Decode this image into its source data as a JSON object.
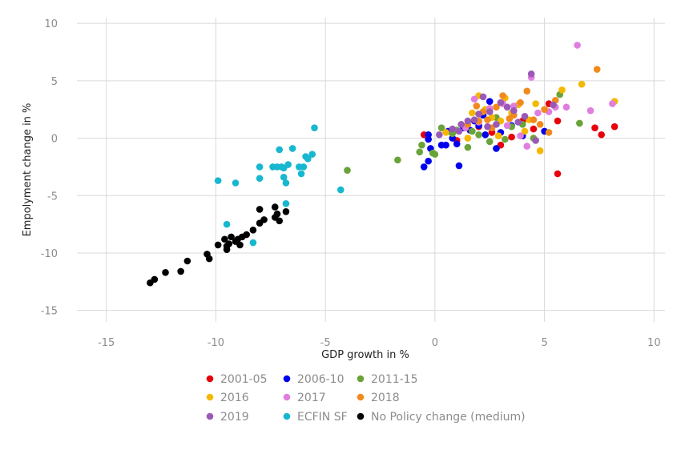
{
  "chart_data": {
    "type": "scatter",
    "title": "",
    "xlabel": "GDP growth in %",
    "ylabel": "Empolyment change in %",
    "xlim": [
      -17,
      10.5
    ],
    "ylim": [
      -16,
      10.5
    ],
    "xticks": [
      -15,
      -10,
      -5,
      0,
      5,
      10
    ],
    "yticks": [
      10,
      5,
      0,
      -5,
      -10,
      -15
    ],
    "xtick_labels": [
      "-15",
      "-10",
      "-5",
      "0",
      "5",
      "10"
    ],
    "ytick_labels": [
      "10",
      "5",
      "0",
      "-5",
      "-10",
      "-15"
    ],
    "grid": true,
    "legend_position": "bottom",
    "series": [
      {
        "name": "2001-05",
        "color": "#e8000b",
        "points": [
          [
            5.2,
            3.0
          ],
          [
            5.6,
            1.5
          ],
          [
            7.3,
            0.9
          ],
          [
            7.6,
            0.3
          ],
          [
            8.2,
            1.0
          ],
          [
            5.6,
            -3.1
          ],
          [
            4.5,
            0.8
          ],
          [
            3.0,
            -0.6
          ],
          [
            1.0,
            -0.2
          ],
          [
            -0.5,
            0.3
          ],
          [
            2.0,
            1.0
          ],
          [
            4.0,
            1.5
          ],
          [
            2.6,
            0.5
          ],
          [
            3.5,
            0.1
          ]
        ]
      },
      {
        "name": "2006-10",
        "color": "#0000ee",
        "points": [
          [
            -0.5,
            -2.5
          ],
          [
            -0.3,
            -2.0
          ],
          [
            -0.3,
            -0.1
          ],
          [
            -0.3,
            0.3
          ],
          [
            0.3,
            -0.6
          ],
          [
            0.5,
            -0.6
          ],
          [
            0.8,
            0.0
          ],
          [
            1.0,
            -0.5
          ],
          [
            1.1,
            -2.4
          ],
          [
            1.3,
            0.9
          ],
          [
            1.6,
            0.7
          ],
          [
            2.0,
            1.1
          ],
          [
            2.3,
            0.3
          ],
          [
            2.5,
            3.2
          ],
          [
            2.8,
            -0.9
          ],
          [
            3.0,
            0.5
          ],
          [
            3.5,
            1.1
          ],
          [
            -0.2,
            -0.9
          ],
          [
            0.6,
            0.6
          ],
          [
            1.8,
            1.5
          ],
          [
            2.2,
            2.0
          ],
          [
            4.0,
            0.2
          ],
          [
            5.0,
            0.6
          ]
        ]
      },
      {
        "name": "2011-15",
        "color": "#6aa339",
        "points": [
          [
            -4.0,
            -2.8
          ],
          [
            -1.7,
            -1.9
          ],
          [
            -0.7,
            -1.2
          ],
          [
            -0.6,
            -0.6
          ],
          [
            -0.1,
            -1.3
          ],
          [
            0.0,
            -1.4
          ],
          [
            0.3,
            0.9
          ],
          [
            0.8,
            0.4
          ],
          [
            1.5,
            -0.8
          ],
          [
            2.0,
            0.3
          ],
          [
            2.5,
            -0.3
          ],
          [
            3.5,
            1.0
          ],
          [
            4.5,
            0.0
          ],
          [
            5.7,
            3.8
          ],
          [
            6.6,
            1.3
          ],
          [
            1.0,
            0.7
          ],
          [
            2.8,
            1.8
          ],
          [
            3.2,
            -0.1
          ],
          [
            4.0,
            1.2
          ],
          [
            1.7,
            0.6
          ]
        ]
      },
      {
        "name": "2016",
        "color": "#f5b800",
        "points": [
          [
            0.5,
            0.5
          ],
          [
            1.5,
            0.0
          ],
          [
            2.0,
            3.7
          ],
          [
            2.3,
            2.5
          ],
          [
            3.0,
            1.5
          ],
          [
            3.2,
            3.5
          ],
          [
            3.5,
            2.2
          ],
          [
            4.1,
            0.6
          ],
          [
            4.6,
            3.0
          ],
          [
            4.8,
            -1.1
          ],
          [
            5.8,
            4.2
          ],
          [
            6.7,
            4.7
          ],
          [
            8.2,
            3.2
          ],
          [
            2.6,
            1.8
          ],
          [
            3.8,
            2.9
          ],
          [
            1.7,
            2.2
          ],
          [
            4.3,
            1.6
          ],
          [
            2.9,
            0.2
          ]
        ]
      },
      {
        "name": "2017",
        "color": "#e07ee0",
        "points": [
          [
            1.8,
            3.4
          ],
          [
            2.5,
            2.6
          ],
          [
            3.1,
            3.0
          ],
          [
            3.6,
            2.8
          ],
          [
            4.2,
            -0.7
          ],
          [
            4.7,
            2.2
          ],
          [
            5.5,
            2.7
          ],
          [
            6.0,
            2.7
          ],
          [
            6.5,
            8.1
          ],
          [
            7.1,
            2.4
          ],
          [
            8.1,
            3.0
          ],
          [
            2.0,
            1.4
          ],
          [
            3.9,
            0.2
          ],
          [
            4.4,
            5.3
          ],
          [
            5.2,
            2.3
          ],
          [
            1.4,
            0.9
          ],
          [
            3.3,
            1.1
          ]
        ]
      },
      {
        "name": "2018",
        "color": "#f18a1c",
        "points": [
          [
            1.5,
            1.2
          ],
          [
            2.0,
            1.5
          ],
          [
            2.2,
            2.3
          ],
          [
            2.4,
            1.6
          ],
          [
            2.8,
            2.7
          ],
          [
            3.1,
            3.7
          ],
          [
            3.4,
            1.7
          ],
          [
            3.9,
            3.1
          ],
          [
            4.2,
            4.1
          ],
          [
            4.5,
            1.6
          ],
          [
            5.0,
            2.5
          ],
          [
            5.2,
            0.5
          ],
          [
            5.5,
            3.3
          ],
          [
            7.4,
            6.0
          ],
          [
            2.6,
            0.9
          ],
          [
            3.6,
            2.0
          ],
          [
            4.8,
            1.2
          ],
          [
            1.9,
            2.8
          ]
        ]
      },
      {
        "name": "2019",
        "color": "#9b59b6",
        "points": [
          [
            0.2,
            0.3
          ],
          [
            0.8,
            0.8
          ],
          [
            1.2,
            1.2
          ],
          [
            1.5,
            1.5
          ],
          [
            1.8,
            1.6
          ],
          [
            2.0,
            2.1
          ],
          [
            2.2,
            3.6
          ],
          [
            2.5,
            2.3
          ],
          [
            2.8,
            1.2
          ],
          [
            3.0,
            3.1
          ],
          [
            3.3,
            2.7
          ],
          [
            3.8,
            1.4
          ],
          [
            4.1,
            1.9
          ],
          [
            4.4,
            5.6
          ],
          [
            4.6,
            -0.2
          ],
          [
            5.4,
            2.9
          ],
          [
            1.1,
            0.6
          ],
          [
            2.4,
            1.0
          ],
          [
            3.6,
            2.4
          ]
        ]
      },
      {
        "name": "ECFIN SF",
        "color": "#17b7cf",
        "points": [
          [
            -9.9,
            -3.7
          ],
          [
            -9.5,
            -7.5
          ],
          [
            -9.1,
            -3.9
          ],
          [
            -8.3,
            -9.1
          ],
          [
            -8.0,
            -2.5
          ],
          [
            -7.2,
            -2.5
          ],
          [
            -7.0,
            -2.5
          ],
          [
            -7.1,
            -1.0
          ],
          [
            -6.9,
            -2.6
          ],
          [
            -6.8,
            -3.9
          ],
          [
            -6.8,
            -5.7
          ],
          [
            -6.5,
            -0.9
          ],
          [
            -6.2,
            -2.5
          ],
          [
            -6.0,
            -2.5
          ],
          [
            -5.9,
            -1.6
          ],
          [
            -5.6,
            -1.4
          ],
          [
            -5.5,
            0.9
          ],
          [
            -4.3,
            -4.5
          ],
          [
            -6.9,
            -3.4
          ],
          [
            -7.4,
            -2.5
          ],
          [
            -6.7,
            -2.3
          ],
          [
            -6.1,
            -3.1
          ],
          [
            -8.0,
            -3.5
          ],
          [
            -5.8,
            -1.8
          ]
        ]
      },
      {
        "name": "No Policy change (medium)",
        "color": "#000000",
        "points": [
          [
            -13.0,
            -12.6
          ],
          [
            -12.8,
            -12.3
          ],
          [
            -12.3,
            -11.7
          ],
          [
            -11.6,
            -11.6
          ],
          [
            -11.3,
            -10.7
          ],
          [
            -10.4,
            -10.1
          ],
          [
            -10.3,
            -10.5
          ],
          [
            -9.9,
            -9.3
          ],
          [
            -9.6,
            -8.8
          ],
          [
            -9.5,
            -9.7
          ],
          [
            -9.4,
            -9.2
          ],
          [
            -9.3,
            -8.6
          ],
          [
            -9.1,
            -9.0
          ],
          [
            -9.0,
            -8.8
          ],
          [
            -8.9,
            -9.3
          ],
          [
            -8.6,
            -8.4
          ],
          [
            -8.3,
            -8.0
          ],
          [
            -8.0,
            -7.4
          ],
          [
            -7.8,
            -7.1
          ],
          [
            -7.3,
            -6.9
          ],
          [
            -7.2,
            -6.6
          ],
          [
            -7.1,
            -7.2
          ],
          [
            -6.8,
            -6.4
          ],
          [
            -7.3,
            -6.0
          ],
          [
            -8.0,
            -6.2
          ],
          [
            -9.5,
            -9.4
          ],
          [
            -8.8,
            -8.6
          ]
        ]
      }
    ]
  }
}
